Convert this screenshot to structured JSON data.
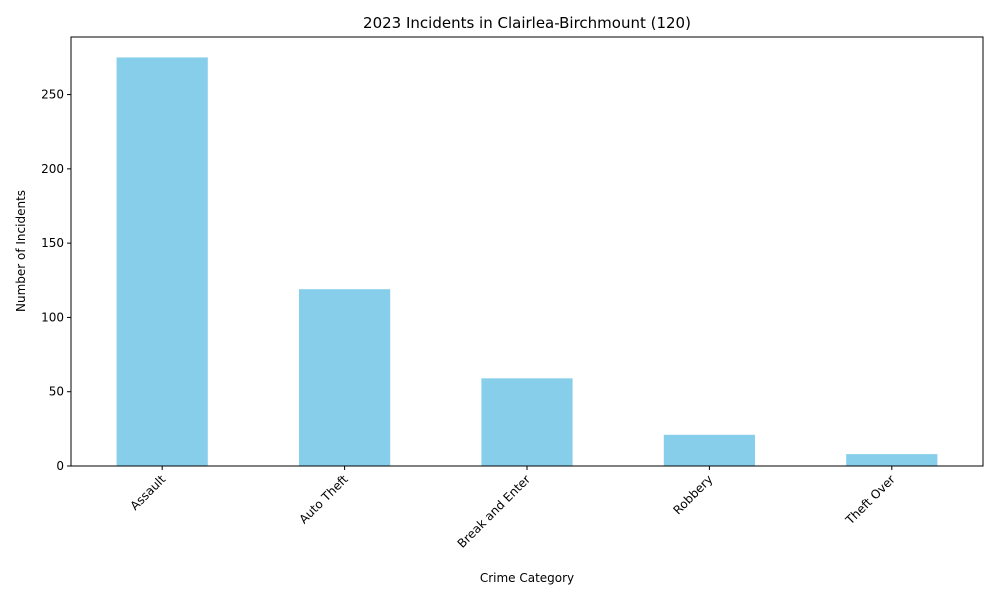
{
  "chart_data": {
    "type": "bar",
    "title": "2023 Incidents in Clairlea-Birchmount (120)",
    "xlabel": "Crime Category",
    "ylabel": "Number of Incidents",
    "categories": [
      "Assault",
      "Auto Theft",
      "Break and Enter",
      "Robbery",
      "Theft Over"
    ],
    "values": [
      275,
      119,
      59,
      21,
      8
    ],
    "ylim": [
      0,
      288.75
    ],
    "yticks": [
      0,
      50,
      100,
      150,
      200,
      250
    ],
    "bar_color": "#87ceeb",
    "grid": false,
    "legend": "none"
  }
}
